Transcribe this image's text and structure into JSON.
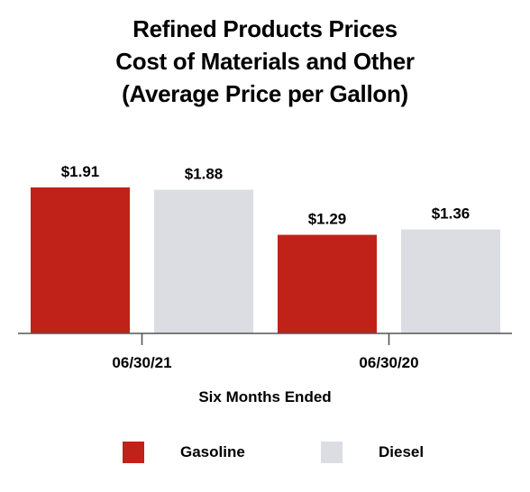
{
  "chart_data": {
    "type": "bar",
    "title_lines": [
      "Refined Products Prices",
      "Cost of Materials and Other",
      "(Average Price per Gallon)"
    ],
    "xlabel": "Six Months Ended",
    "ylabel": "",
    "categories": [
      "06/30/21",
      "06/30/20"
    ],
    "series": [
      {
        "name": "Gasoline",
        "color": "#c0221a",
        "values": [
          1.91,
          1.29
        ],
        "labels": [
          "$1.91",
          "$1.29"
        ]
      },
      {
        "name": "Diesel",
        "color": "#dcdde2",
        "values": [
          1.88,
          1.36
        ],
        "labels": [
          "$1.88",
          "$1.36"
        ]
      }
    ],
    "ylim": [
      0,
      1.91
    ],
    "grid": false,
    "legend_position": "bottom"
  }
}
